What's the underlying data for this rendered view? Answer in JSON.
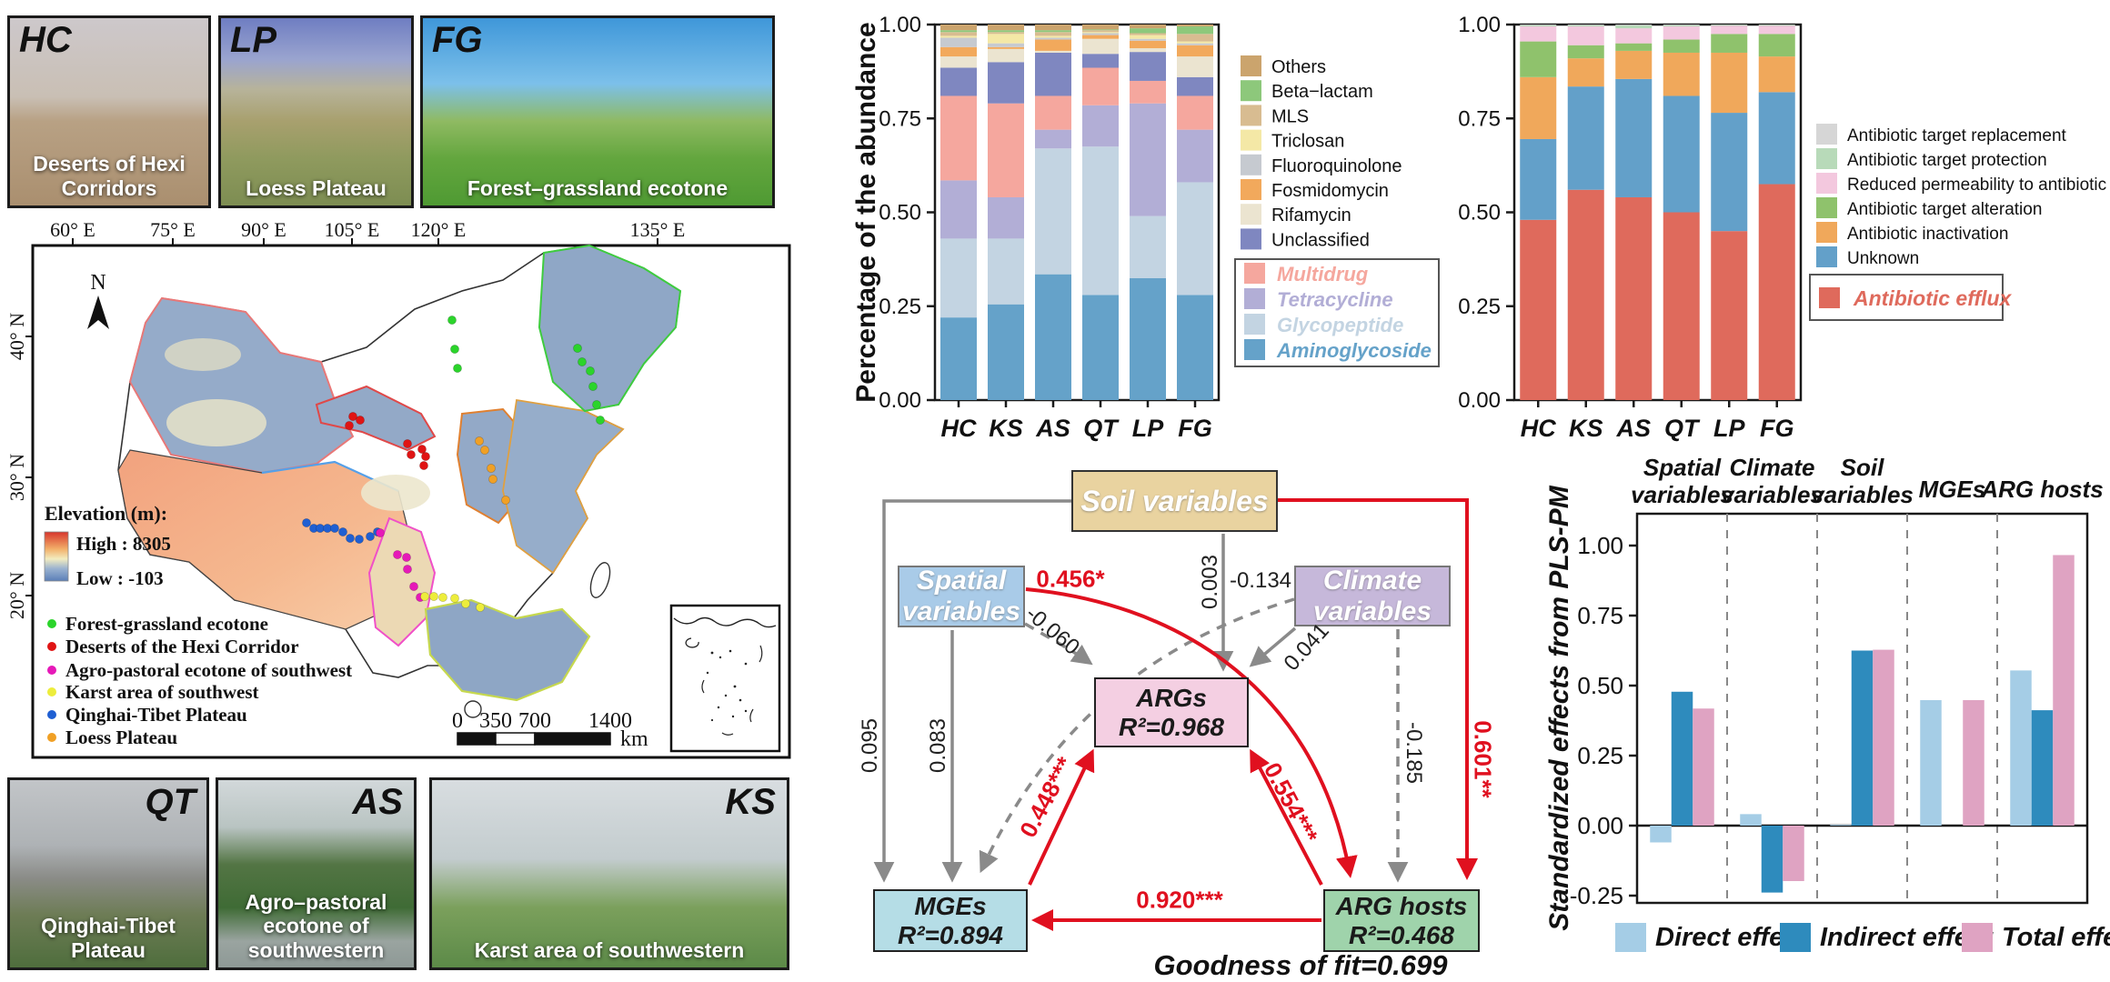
{
  "photos": {
    "hc": {
      "code": "HC",
      "caption": "Deserts of Hexi Corridors"
    },
    "lp": {
      "code": "LP",
      "caption": "Loess Plateau"
    },
    "fg": {
      "code": "FG",
      "caption": "Forest–grassland ecotone"
    },
    "qt": {
      "code": "QT",
      "caption": "Qinghai-Tibet Plateau"
    },
    "as": {
      "code": "AS",
      "caption": "Agro–pastoral ecotone of southwestern"
    },
    "ks": {
      "code": "KS",
      "caption": "Karst area of southwestern"
    }
  },
  "map": {
    "lon_ticks": [
      "60° E",
      "75° E",
      "90° E",
      "105° E",
      "120° E",
      "135° E"
    ],
    "lat_ticks": [
      "40° N",
      "30° N",
      "20° N"
    ],
    "north_label": "N",
    "elevation_legend": {
      "title": "Elevation (m):",
      "high": "High : 8305",
      "low": "Low : -103",
      "high_color": "#d7352c",
      "low_color": "#5b7fb8"
    },
    "site_legend": [
      {
        "label": "Forest-grassland ecotone",
        "color": "#2bd42b"
      },
      {
        "label": "Deserts of the Hexi Corridor",
        "color": "#e01414"
      },
      {
        "label": "Agro-pastoral ecotone of southwest",
        "color": "#e619b8"
      },
      {
        "label": "Karst area of southwest",
        "color": "#eded3c"
      },
      {
        "label": "Qinghai-Tibet Plateau",
        "color": "#1f5fd2"
      },
      {
        "label": "Loess Plateau",
        "color": "#f0a025"
      }
    ],
    "scale_bar": {
      "ticks": [
        "0",
        "350",
        "700",
        "1400"
      ],
      "unit": "km"
    },
    "transects": [
      {
        "name": "Forest-grassland ecotone",
        "color": "#2bd42b",
        "points": [
          [
            489,
            112
          ],
          [
            492,
            144
          ],
          [
            495,
            165
          ],
          [
            627,
            143
          ],
          [
            632,
            158
          ],
          [
            641,
            168
          ],
          [
            644,
            185
          ],
          [
            648,
            205
          ],
          [
            652,
            222
          ]
        ]
      },
      {
        "name": "Deserts of the Hexi Corridor",
        "color": "#e01414",
        "points": [
          [
            380,
            218
          ],
          [
            388,
            222
          ],
          [
            376,
            228
          ],
          [
            440,
            248
          ],
          [
            444,
            260
          ],
          [
            456,
            254
          ],
          [
            460,
            262
          ],
          [
            458,
            272
          ]
        ]
      },
      {
        "name": "Loess Plateau",
        "color": "#f0a025",
        "points": [
          [
            519,
            245
          ],
          [
            525,
            255
          ],
          [
            532,
            275
          ],
          [
            534,
            287
          ],
          [
            548,
            310
          ]
        ]
      },
      {
        "name": "Qinghai-Tibet Plateau",
        "color": "#1f5fd2",
        "points": [
          [
            329,
            335
          ],
          [
            337,
            341
          ],
          [
            344,
            341
          ],
          [
            352,
            341
          ],
          [
            360,
            341
          ],
          [
            369,
            345
          ],
          [
            377,
            352
          ],
          [
            387,
            353
          ],
          [
            399,
            350
          ],
          [
            407,
            345
          ]
        ]
      },
      {
        "name": "Agro-pastoral ecotone of southwest",
        "color": "#e619b8",
        "points": [
          [
            410,
            346
          ],
          [
            429,
            370
          ],
          [
            439,
            373
          ],
          [
            440,
            386
          ],
          [
            447,
            405
          ],
          [
            454,
            417
          ]
        ]
      },
      {
        "name": "Karst area of southwest",
        "color": "#eded3c",
        "points": [
          [
            459,
            416
          ],
          [
            469,
            416
          ],
          [
            479,
            417
          ],
          [
            492,
            418
          ],
          [
            504,
            424
          ],
          [
            520,
            428
          ]
        ]
      }
    ]
  },
  "chart_data": [
    {
      "id": "arg-class-composition",
      "type": "stacked_bar",
      "title": "",
      "xlabel": "",
      "ylabel": "Percentage of the abundance",
      "ylim": [
        0,
        1
      ],
      "categories": [
        "HC",
        "KS",
        "AS",
        "QT",
        "LP",
        "FG"
      ],
      "yticks": [
        {
          "v": 1.0,
          "label": "1.00"
        },
        {
          "v": 0.75,
          "label": "0.75"
        },
        {
          "v": 0.5,
          "label": "0.50"
        },
        {
          "v": 0.25,
          "label": "0.25"
        },
        {
          "v": 0.0,
          "label": "0.00"
        }
      ],
      "series_bottom_to_top": [
        {
          "name": "Aminoglycoside",
          "color": "#65a2c9",
          "values": [
            0.22,
            0.255,
            0.335,
            0.28,
            0.325,
            0.28
          ]
        },
        {
          "name": "Glycopeptide",
          "color": "#c3d4e2",
          "values": [
            0.21,
            0.175,
            0.335,
            0.395,
            0.165,
            0.3
          ]
        },
        {
          "name": "Tetracycline",
          "color": "#b2aed6",
          "values": [
            0.155,
            0.11,
            0.05,
            0.11,
            0.3,
            0.14
          ]
        },
        {
          "name": "Multidrug",
          "color": "#f5a79e",
          "values": [
            0.225,
            0.25,
            0.09,
            0.1,
            0.06,
            0.09
          ]
        },
        {
          "name": "Unclassified",
          "color": "#7f87c0",
          "values": [
            0.075,
            0.11,
            0.115,
            0.037,
            0.077,
            0.05
          ]
        },
        {
          "name": "Rifamycin",
          "color": "#ebe4d0",
          "values": [
            0.03,
            0.035,
            0.005,
            0.04,
            0.01,
            0.055
          ]
        },
        {
          "name": "Fosmidomycin",
          "color": "#f2a95c",
          "values": [
            0.025,
            0.005,
            0.03,
            0.01,
            0.02,
            0.03
          ]
        },
        {
          "name": "Fluoroquinolone",
          "color": "#c6cad0",
          "values": [
            0.025,
            0.01,
            0.005,
            0.005,
            0.005,
            0.005
          ]
        },
        {
          "name": "Triclosan",
          "color": "#f4e8a6",
          "values": [
            0.005,
            0.025,
            0.005,
            0.003,
            0.01,
            0.005
          ]
        },
        {
          "name": "MLS",
          "color": "#d8bc91",
          "values": [
            0.01,
            0.005,
            0.01,
            0.005,
            0.005,
            0.02
          ]
        },
        {
          "name": "Beta−lactam",
          "color": "#8dc87b",
          "values": [
            0.005,
            0.005,
            0.005,
            0.002,
            0.013,
            0.02
          ]
        },
        {
          "name": "Others",
          "color": "#cba46d",
          "values": [
            0.015,
            0.015,
            0.015,
            0.013,
            0.01,
            0.005
          ]
        }
      ],
      "legend_plain_top_to_bottom": [
        "Others",
        "Beta−lactam",
        "MLS",
        "Triclosan",
        "Fluoroquinolone",
        "Fosmidomycin",
        "Rifamycin",
        "Unclassified"
      ],
      "legend_boxed": [
        "Multidrug",
        "Tetracycline",
        "Glycopeptide",
        "Aminoglycoside"
      ]
    },
    {
      "id": "arg-mechanism-composition",
      "type": "stacked_bar",
      "title": "",
      "xlabel": "",
      "ylabel": "",
      "ylim": [
        0,
        1
      ],
      "categories": [
        "HC",
        "KS",
        "AS",
        "QT",
        "LP",
        "FG"
      ],
      "yticks": [
        {
          "v": 1.0,
          "label": "1.00"
        },
        {
          "v": 0.75,
          "label": "0.75"
        },
        {
          "v": 0.5,
          "label": "0.50"
        },
        {
          "v": 0.25,
          "label": "0.25"
        },
        {
          "v": 0.0,
          "label": "0.00"
        }
      ],
      "series_bottom_to_top": [
        {
          "name": "Antibiotic efflux",
          "color": "#df6a5c",
          "values": [
            0.48,
            0.56,
            0.54,
            0.5,
            0.45,
            0.575
          ]
        },
        {
          "name": "Unknown",
          "color": "#63a0c9",
          "values": [
            0.215,
            0.275,
            0.315,
            0.31,
            0.315,
            0.245
          ]
        },
        {
          "name": "Antibiotic inactivation",
          "color": "#f0a85b",
          "values": [
            0.165,
            0.075,
            0.075,
            0.115,
            0.16,
            0.095
          ]
        },
        {
          "name": "Antibiotic target alteration",
          "color": "#8fc26c",
          "values": [
            0.095,
            0.035,
            0.02,
            0.035,
            0.05,
            0.06
          ]
        },
        {
          "name": "Reduced permeability to antibiotic",
          "color": "#f3c8de",
          "values": [
            0.04,
            0.05,
            0.04,
            0.035,
            0.022,
            0.022
          ]
        },
        {
          "name": "Antibiotic target protection",
          "color": "#b8dab9",
          "values": [
            0.003,
            0.003,
            0.008,
            0.003,
            0.002,
            0.002
          ]
        },
        {
          "name": "Antibiotic target replacement",
          "color": "#d6d6d6",
          "values": [
            0.002,
            0.002,
            0.002,
            0.002,
            0.001,
            0.001
          ]
        }
      ],
      "legend_plain_top_to_bottom": [
        "Antibiotic target replacement",
        "Antibiotic target protection",
        "Reduced permeability to antibiotic",
        "Antibiotic target alteration",
        "Antibiotic inactivation",
        "Unknown"
      ],
      "legend_boxed": [
        "Antibiotic efflux"
      ]
    },
    {
      "id": "plspm-standardized-effects",
      "type": "grouped_bar",
      "title": "",
      "xlabel": "",
      "ylabel": "Standardized effects from PLS-PM",
      "ylim": [
        -0.33,
        1.11
      ],
      "yticks": [
        {
          "v": 1.0,
          "label": "1.00"
        },
        {
          "v": 0.75,
          "label": "0.75"
        },
        {
          "v": 0.5,
          "label": "0.50"
        },
        {
          "v": 0.25,
          "label": "0.25"
        },
        {
          "v": 0.0,
          "label": "0.00"
        },
        {
          "v": -0.25,
          "label": "-0.25"
        }
      ],
      "groups": [
        [
          "Spatial",
          "variables"
        ],
        [
          "Climate",
          "variables"
        ],
        [
          "Soil",
          "variables"
        ],
        [
          "MGEs"
        ],
        [
          "ARG hosts"
        ]
      ],
      "series": [
        {
          "name": "Direct effect",
          "color": "#a5cde6",
          "values": [
            -0.06,
            0.041,
            0.003,
            0.448,
            0.554
          ]
        },
        {
          "name": "Indirect effect",
          "color": "#2e8bbd",
          "values": [
            0.478,
            -0.239,
            0.625,
            0.0,
            0.412
          ]
        },
        {
          "name": "Total effect",
          "color": "#dfa3c2",
          "values": [
            0.418,
            -0.198,
            0.628,
            0.448,
            0.966
          ]
        }
      ]
    }
  ],
  "diagram": {
    "boxes": {
      "soil": {
        "line1": "Soil variables",
        "color": "#e9d3a0"
      },
      "spatial": {
        "line1": "Spatial",
        "line2": "variables",
        "color": "#a9cbe8"
      },
      "climate": {
        "line1": "Climate",
        "line2": "variables",
        "color": "#c6b8da"
      },
      "args": {
        "line1": "ARGs",
        "line2": "R²=0.968",
        "color": "#f4cfe2"
      },
      "mges": {
        "line1": "MGEs",
        "line2": "R²=0.894",
        "color": "#b5dde6"
      },
      "hosts": {
        "line1": "ARG hosts",
        "line2": "R²=0.468",
        "color": "#9fd3ab"
      }
    },
    "paths": [
      {
        "from": "Spatial variables",
        "to": "ARG hosts",
        "label": "0.456*",
        "style": "red-solid"
      },
      {
        "from": "Soil variables",
        "to": "ARGs",
        "label": "0.003",
        "style": "gray-solid"
      },
      {
        "from": "Climate variables",
        "to": "MGEs",
        "label": "-0.134",
        "style": "gray-dashed"
      },
      {
        "from": "Spatial variables",
        "to": "ARGs",
        "label": "-0.060",
        "style": "gray-dashed"
      },
      {
        "from": "Climate variables",
        "to": "ARGs",
        "label": "0.041",
        "style": "gray-solid"
      },
      {
        "from": "Soil variables",
        "to": "MGEs",
        "label": "0.095",
        "style": "gray-solid"
      },
      {
        "from": "Spatial variables",
        "to": "MGEs",
        "label": "0.083",
        "style": "gray-solid"
      },
      {
        "from": "MGEs",
        "to": "ARGs",
        "label": "0.448***",
        "style": "red-solid"
      },
      {
        "from": "ARG hosts",
        "to": "ARGs",
        "label": "0.554***",
        "style": "red-solid"
      },
      {
        "from": "Climate variables",
        "to": "ARG hosts",
        "label": "-0.185",
        "style": "gray-dashed"
      },
      {
        "from": "Soil variables",
        "to": "ARG hosts",
        "label": "0.601**",
        "style": "red-solid"
      },
      {
        "from": "ARG hosts",
        "to": "MGEs",
        "label": "0.920***",
        "style": "red-solid"
      }
    ],
    "goodness": "Goodness of fit=0.699"
  }
}
